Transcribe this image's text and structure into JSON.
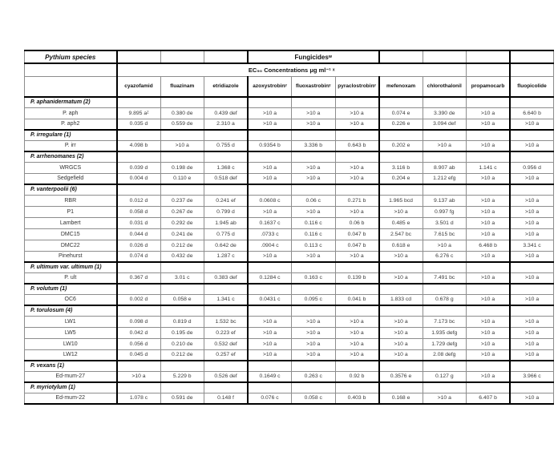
{
  "table": {
    "species_header": "Pythium species",
    "fungicides_label": "Fungicidesʷ",
    "ec50_label": "EC₅₀ Concentrations μg ml⁻¹ ˣ",
    "columns": [
      "cyazofamid",
      "fluazinam",
      "etridiazole",
      "azoxystrobinʸ",
      "fluoxastrobinʸ",
      "pyraclostrobinʸ",
      "mefenoxam",
      "chlorothalonil",
      "propamocarb",
      "fluopicolide"
    ],
    "groups": [
      {
        "label": "P. aphanidermatum (2)",
        "rows": [
          {
            "name": "P. aph",
            "values": [
              "9.895 aᶻ",
              "0.380 de",
              "0.439 def",
              ">10 a",
              ">10 a",
              ">10 a",
              "0.074 e",
              "3.390 de",
              ">10 a",
              "6.640 b"
            ]
          },
          {
            "name": "P. aph2",
            "values": [
              "0.035 d",
              "0.559 de",
              "2.310 a",
              ">10 a",
              ">10 a",
              ">10 a",
              "0.226 e",
              "3.094 def",
              ">10 a",
              ">10 a"
            ]
          }
        ]
      },
      {
        "label": "P. irregulare (1)",
        "rows": [
          {
            "name": "P. irr",
            "values": [
              "4.098 b",
              ">10 a",
              "0.755 d",
              "0.9354 b",
              "3.336 b",
              "0.643 b",
              "0.202 e",
              ">10 a",
              ">10 a",
              ">10 a"
            ]
          }
        ]
      },
      {
        "label": "P. arrhenomanes (2)",
        "rows": [
          {
            "name": "WRGCS",
            "values": [
              "0.039 d",
              "0.198 de",
              "1.368 c",
              ">10 a",
              ">10 a",
              ">10 a",
              "3.116 b",
              "8.907 ab",
              "1.141 c",
              "0.956 d"
            ]
          },
          {
            "name": "Sedgefield",
            "values": [
              "0.004 d",
              "0.110 e",
              "0.518 def",
              ">10 a",
              ">10 a",
              ">10 a",
              "0.204 e",
              "1.212 efg",
              ">10 a",
              ">10 a"
            ]
          }
        ]
      },
      {
        "label": "P. vanterpoolii (6)",
        "rows": [
          {
            "name": "RBR",
            "values": [
              "0.012 d",
              "0.237 de",
              "0.241 ef",
              "0.0608 c",
              "0.06 c",
              "0.271 b",
              "1.965 bcd",
              "9.137 ab",
              ">10 a",
              ">10 a"
            ]
          },
          {
            "name": "P1",
            "values": [
              "0.058 d",
              "0.267 de",
              "0.799 d",
              ">10 a",
              ">10 a",
              ">10 a",
              ">10 a",
              "0.997 fg",
              ">10 a",
              ">10 a"
            ]
          },
          {
            "name": "Lambert",
            "values": [
              "0.031 d",
              "0.292 de",
              "1.945 ab",
              "0.1637 c",
              "0.116 c",
              "0.06 b",
              "0.485 e",
              "3.501 d",
              ">10 a",
              ">10 a"
            ]
          },
          {
            "name": "DMC15",
            "values": [
              "0.044 d",
              "0.241 de",
              "0.775 d",
              ".0733 c",
              "0.116 c",
              "0.047 b",
              "2.547 bc",
              "7.615 bc",
              ">10 a",
              ">10 a"
            ]
          },
          {
            "name": "DMC22",
            "values": [
              "0.026 d",
              "0.212 de",
              "0.642 de",
              ".0904 c",
              "0.113 c",
              "0.047 b",
              "0.618 e",
              ">10 a",
              "6.468 b",
              "3.341 c"
            ]
          },
          {
            "name": "Pinehurst",
            "values": [
              "0.074 d",
              "0.432 de",
              "1.287 c",
              ">10 a",
              ">10 a",
              ">10 a",
              ">10 a",
              "6.276 c",
              ">10 a",
              ">10 a"
            ]
          }
        ]
      },
      {
        "label": "P. ultimum var. ultimum (1)",
        "rows": [
          {
            "name": "P. ult",
            "values": [
              "0.367 d",
              "3.01 c",
              "0.383 def",
              "0.1284 c",
              "0.163 c",
              "0.139 b",
              ">10 a",
              "7.491 bc",
              ">10 a",
              ">10 a"
            ]
          }
        ]
      },
      {
        "label": "P. volutum (1)",
        "rows": [
          {
            "name": "OC6",
            "values": [
              "0.002 d",
              "0.058 e",
              "1.341 c",
              "0.0431 c",
              "0.095 c",
              "0.041 b",
              "1.833 cd",
              "0.678 g",
              ">10 a",
              ">10 a"
            ]
          }
        ]
      },
      {
        "label": "P. torulosum (4)",
        "rows": [
          {
            "name": "LW1",
            "values": [
              "0.098 d",
              "0.819 d",
              "1.532 bc",
              ">10 a",
              ">10 a",
              ">10 a",
              ">10 a",
              "7.173 bc",
              ">10 a",
              ">10 a"
            ]
          },
          {
            "name": "LW5",
            "values": [
              "0.042 d",
              "0.195 de",
              "0.223 ef",
              ">10 a",
              ">10 a",
              ">10 a",
              ">10 a",
              "1.935 defg",
              ">10 a",
              ">10 a"
            ]
          },
          {
            "name": "LW10",
            "values": [
              "0.056 d",
              "0.210 de",
              "0.532 def",
              ">10 a",
              ">10 a",
              ">10 a",
              ">10 a",
              "1.729 defg",
              ">10 a",
              ">10 a"
            ]
          },
          {
            "name": "LW12",
            "values": [
              "0.045 d",
              "0.212 de",
              "0.257 ef",
              ">10 a",
              ">10 a",
              ">10 a",
              ">10 a",
              "2.08 defg",
              ">10 a",
              ">10 a"
            ]
          }
        ]
      },
      {
        "label": "P. vexans (1)",
        "rows": [
          {
            "name": "Ed-mum-27",
            "values": [
              ">10 a",
              "5.229 b",
              "0.526 def",
              "0.1649 c",
              "0.263 c",
              "0.92 b",
              "0.3576 e",
              "0.127 g",
              ">10 a",
              "3.966 c"
            ]
          }
        ]
      },
      {
        "label": "P. myriotylum (1)",
        "rows": [
          {
            "name": "Ed-mum-22",
            "values": [
              "1.078 c",
              "0.591 de",
              "0.148 f",
              "0.076 c",
              "0.058 c",
              "0.403 b",
              "0.168 e",
              ">10 a",
              "6.407 b",
              ">10 a"
            ]
          }
        ]
      }
    ]
  }
}
